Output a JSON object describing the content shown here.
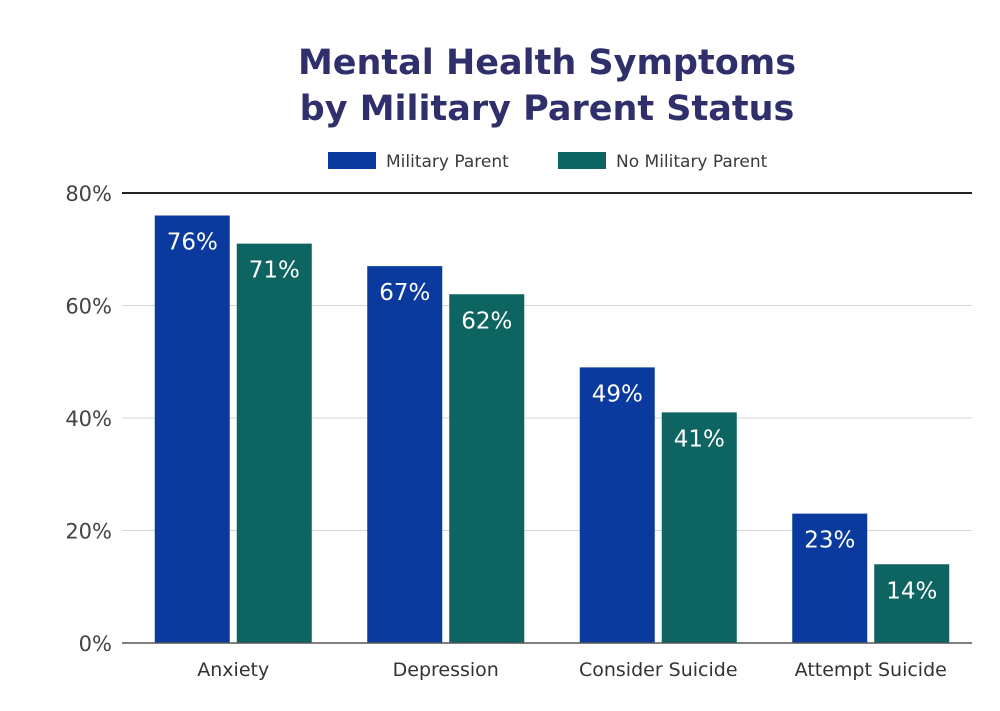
{
  "chart_data": {
    "type": "bar",
    "title_lines": [
      "Mental Health Symptoms",
      "by Military Parent Status"
    ],
    "categories": [
      "Anxiety",
      "Depression",
      "Consider Suicide",
      "Attempt Suicide"
    ],
    "series": [
      {
        "name": "Military Parent",
        "color": "#0b3a9e",
        "values": [
          76,
          67,
          49,
          23
        ],
        "labels": [
          "76%",
          "67%",
          "49%",
          "23%"
        ]
      },
      {
        "name": "No Military Parent",
        "color": "#0d6461",
        "values": [
          71,
          62,
          41,
          14
        ],
        "labels": [
          "71%",
          "62%",
          "41%",
          "14%"
        ]
      }
    ],
    "y_ticks": [
      0,
      20,
      40,
      60,
      80
    ],
    "y_tick_labels": [
      "0%",
      "20%",
      "40%",
      "60%",
      "80%"
    ],
    "ylim": [
      0,
      80
    ],
    "xlabel": "",
    "ylabel": "",
    "legend_position": "top-center",
    "grid": true
  }
}
